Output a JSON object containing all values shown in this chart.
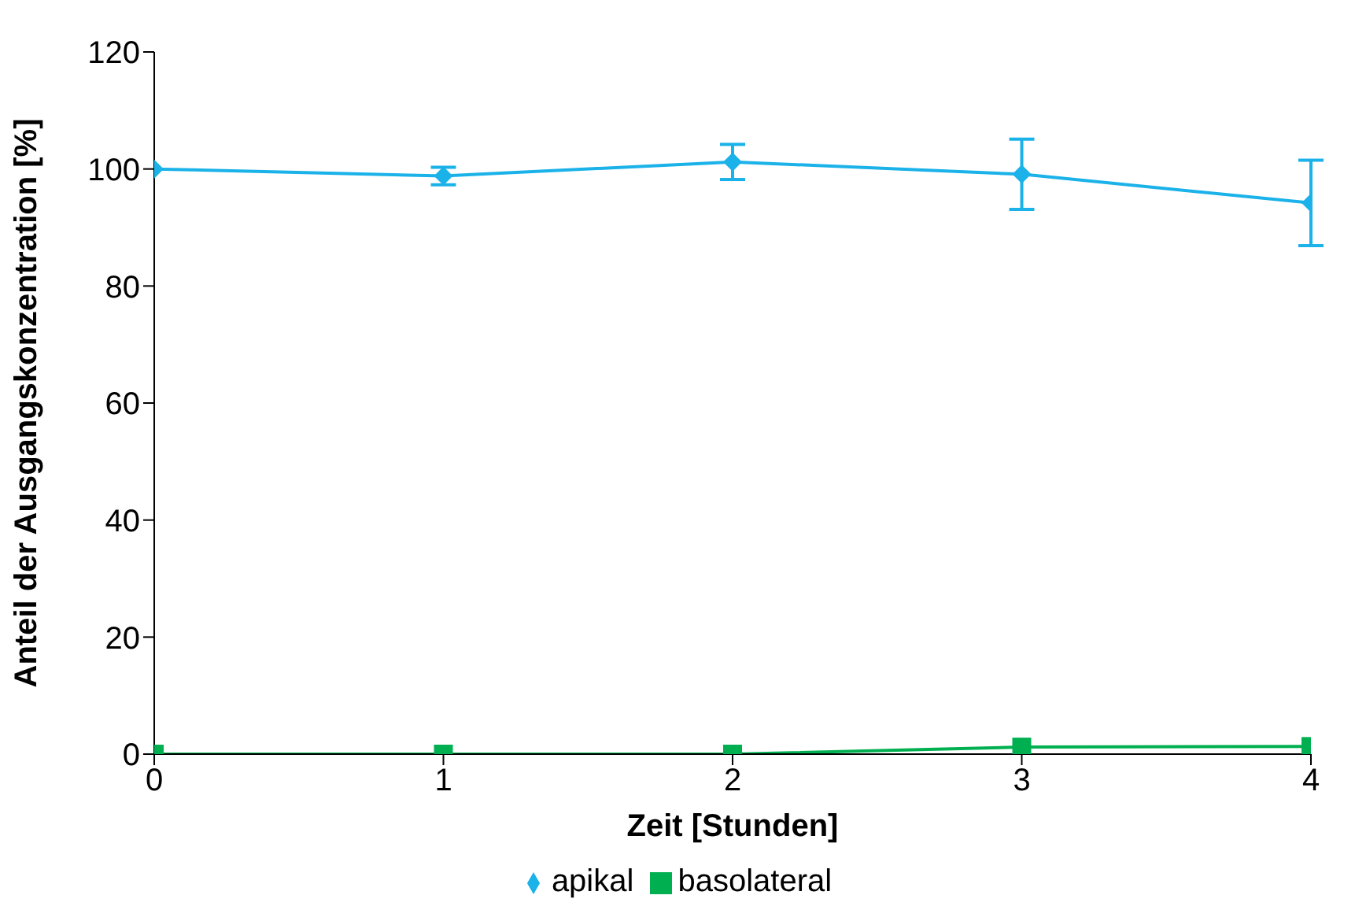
{
  "chart_data": {
    "type": "line",
    "xlabel": "Zeit  [Stunden]",
    "ylabel": "Anteil der Ausgangskonzentration  [%]",
    "x": [
      0,
      1,
      2,
      3,
      4
    ],
    "xlim": [
      0,
      4
    ],
    "xticks": [
      0,
      1,
      2,
      3,
      4
    ],
    "ylim": [
      0,
      120
    ],
    "yticks": [
      0,
      20,
      40,
      60,
      80,
      100,
      120
    ],
    "grid": false,
    "legend": "bottom",
    "series": [
      {
        "name": "apikal",
        "color": "#1ab2e8",
        "marker": "diamond",
        "values": [
          100,
          98.8,
          101.2,
          99.1,
          94.2
        ],
        "errors": [
          null,
          1.5,
          3,
          6,
          7.3
        ]
      },
      {
        "name": "basolateral",
        "color": "#00b050",
        "marker": "square",
        "values": [
          0,
          0,
          0,
          1.2,
          1.3
        ]
      }
    ]
  }
}
